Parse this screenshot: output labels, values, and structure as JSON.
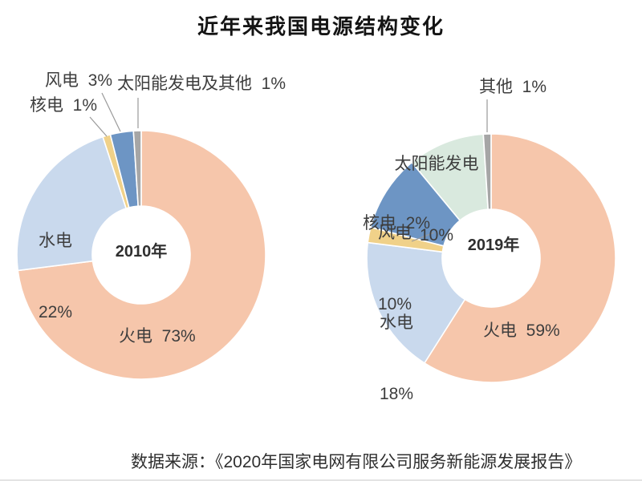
{
  "page": {
    "title": "近年来我国电源结构变化",
    "source": "数据来源：《2020年国家电网有限公司服务新能源发展报告》"
  },
  "chart_data": [
    {
      "type": "pie",
      "subtype": "donut",
      "center_label": "2010年",
      "year": "2010",
      "unit": "%",
      "start_angle_deg": 0,
      "direction": "clockwise",
      "slices": [
        {
          "id": "thermal",
          "name": "火电",
          "value": 73,
          "color": "#F6C6AB"
        },
        {
          "id": "hydro",
          "name": "水电",
          "value": 22,
          "color": "#C9D9ED"
        },
        {
          "id": "nuclear",
          "name": "核电",
          "value": 1,
          "color": "#F0D189"
        },
        {
          "id": "wind",
          "name": "风电",
          "value": 3,
          "color": "#6D95C4"
        },
        {
          "id": "solar-other",
          "name": "太阳能发电及其他",
          "value": 1,
          "color": "#A6A6A6"
        }
      ]
    },
    {
      "type": "pie",
      "subtype": "donut",
      "center_label": "2019年",
      "year": "2019",
      "unit": "%",
      "start_angle_deg": 0,
      "direction": "clockwise",
      "slices": [
        {
          "id": "thermal",
          "name": "火电",
          "value": 59,
          "color": "#F6C6AB"
        },
        {
          "id": "hydro",
          "name": "水电",
          "value": 18,
          "color": "#C9D9ED"
        },
        {
          "id": "nuclear",
          "name": "核电",
          "value": 2,
          "color": "#F0D189"
        },
        {
          "id": "wind",
          "name": "风电",
          "value": 10,
          "color": "#6D95C4"
        },
        {
          "id": "solar",
          "name": "太阳能发电",
          "value": 10,
          "color": "#D9E9DE"
        },
        {
          "id": "other",
          "name": "其他",
          "value": 1,
          "color": "#A6A6A6"
        }
      ]
    }
  ],
  "labels": {
    "left": {
      "wind": "风电  3%",
      "nuclear": "核电  1%",
      "solar_other": "太阳能发电及其他  1%",
      "hydro_name": "水电",
      "hydro_value": "22%",
      "thermal": "火电  73%",
      "center": "2010年"
    },
    "right": {
      "other": "其他  1%",
      "solar_name": "太阳能发电",
      "solar_value": "10%",
      "wind_name": "风电",
      "wind_value": "10%",
      "nuclear": "核电  2%",
      "hydro_name": "水电",
      "hydro_value": "18%",
      "thermal": "火电  59%",
      "center": "2019年"
    }
  }
}
